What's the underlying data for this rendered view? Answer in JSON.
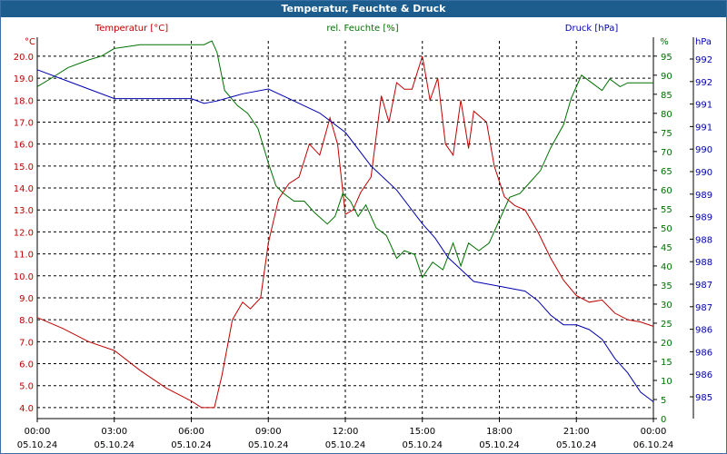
{
  "window": {
    "title": "Temperatur, Feuchte & Druck"
  },
  "legend": {
    "temperature": "Temperatur [°C]",
    "humidity": "rel. Feuchte [%]",
    "pressure": "Druck [hPa]"
  },
  "axes": {
    "left_unit": "°C",
    "right1_unit": "%",
    "right2_unit": "hPa",
    "left_ticks": [
      "4.0",
      "5.0",
      "6.0",
      "7.0",
      "8.0",
      "9.0",
      "10.0",
      "11.0",
      "12.0",
      "13.0",
      "14.0",
      "15.0",
      "16.0",
      "17.0",
      "18.0",
      "19.0",
      "20.0"
    ],
    "right1_ticks": [
      "0",
      "5",
      "10",
      "15",
      "20",
      "25",
      "30",
      "35",
      "40",
      "45",
      "50",
      "55",
      "60",
      "65",
      "70",
      "75",
      "80",
      "85",
      "90",
      "95"
    ],
    "right2_ticks": [
      "985",
      "986",
      "986",
      "986",
      "987",
      "987",
      "988",
      "988",
      "989",
      "989",
      "990",
      "990",
      "991",
      "991",
      "992",
      "992"
    ],
    "x_time_ticks": [
      "00:00",
      "03:00",
      "06:00",
      "09:00",
      "12:00",
      "15:00",
      "18:00",
      "21:00",
      "00:00"
    ],
    "x_date_ticks": [
      "05.10.24",
      "05.10.24",
      "05.10.24",
      "05.10.24",
      "05.10.24",
      "05.10.24",
      "05.10.24",
      "05.10.24",
      "06.10.24"
    ]
  },
  "colors": {
    "temperature": "#c00000",
    "humidity": "#007000",
    "pressure": "#0000b0",
    "title_bar": "#1c5d8e",
    "grid": "#000000"
  },
  "chart_data": {
    "type": "line",
    "x_unit": "hours since 05.10.24 00:00",
    "xlim": [
      0,
      24
    ],
    "grid": true,
    "series": [
      {
        "name": "Temperatur [°C]",
        "axis": "left",
        "ylim": [
          3.5,
          20.7
        ],
        "points": [
          [
            0,
            8.1
          ],
          [
            1,
            7.6
          ],
          [
            2,
            7.0
          ],
          [
            3,
            6.6
          ],
          [
            4,
            5.7
          ],
          [
            5,
            4.9
          ],
          [
            6,
            4.3
          ],
          [
            6.4,
            4.0
          ],
          [
            6.9,
            4.0
          ],
          [
            7.2,
            5.5
          ],
          [
            7.6,
            8.0
          ],
          [
            8.0,
            8.8
          ],
          [
            8.3,
            8.5
          ],
          [
            8.7,
            9.0
          ],
          [
            9.0,
            11.5
          ],
          [
            9.4,
            13.5
          ],
          [
            9.8,
            14.2
          ],
          [
            10.2,
            14.5
          ],
          [
            10.6,
            16.0
          ],
          [
            11.0,
            15.5
          ],
          [
            11.4,
            17.2
          ],
          [
            11.7,
            16.0
          ],
          [
            12.0,
            12.8
          ],
          [
            12.3,
            13.0
          ],
          [
            12.6,
            13.8
          ],
          [
            13.0,
            14.5
          ],
          [
            13.4,
            18.2
          ],
          [
            13.7,
            17.0
          ],
          [
            14.0,
            18.8
          ],
          [
            14.3,
            18.5
          ],
          [
            14.6,
            18.5
          ],
          [
            15.0,
            20.0
          ],
          [
            15.3,
            18.0
          ],
          [
            15.6,
            19.0
          ],
          [
            15.9,
            16.0
          ],
          [
            16.2,
            15.5
          ],
          [
            16.5,
            18.0
          ],
          [
            16.8,
            15.8
          ],
          [
            17.0,
            17.5
          ],
          [
            17.5,
            17.0
          ],
          [
            17.8,
            15.0
          ],
          [
            18.2,
            13.6
          ],
          [
            18.6,
            13.2
          ],
          [
            19.0,
            13.0
          ],
          [
            19.5,
            12.0
          ],
          [
            20.0,
            10.8
          ],
          [
            20.5,
            9.8
          ],
          [
            21.0,
            9.1
          ],
          [
            21.5,
            8.8
          ],
          [
            22.0,
            8.9
          ],
          [
            22.5,
            8.3
          ],
          [
            23.0,
            8.0
          ],
          [
            23.5,
            7.9
          ],
          [
            24.0,
            7.7
          ]
        ]
      },
      {
        "name": "rel. Feuchte [%]",
        "axis": "right1",
        "ylim": [
          0,
          99
        ],
        "points": [
          [
            0,
            87
          ],
          [
            0.5,
            89
          ],
          [
            1.2,
            92
          ],
          [
            2.0,
            94
          ],
          [
            2.5,
            95
          ],
          [
            3.0,
            97
          ],
          [
            4.0,
            98
          ],
          [
            5.0,
            98
          ],
          [
            6.0,
            98
          ],
          [
            6.5,
            98
          ],
          [
            6.8,
            99
          ],
          [
            7.0,
            96
          ],
          [
            7.3,
            86
          ],
          [
            7.8,
            82
          ],
          [
            8.2,
            80
          ],
          [
            8.6,
            76
          ],
          [
            9.0,
            67
          ],
          [
            9.3,
            61
          ],
          [
            9.6,
            59
          ],
          [
            10.0,
            57
          ],
          [
            10.4,
            57
          ],
          [
            10.8,
            54
          ],
          [
            11.3,
            51
          ],
          [
            11.6,
            53
          ],
          [
            11.9,
            59
          ],
          [
            12.2,
            57
          ],
          [
            12.5,
            53
          ],
          [
            12.8,
            56
          ],
          [
            13.2,
            50
          ],
          [
            13.6,
            48
          ],
          [
            14.0,
            42
          ],
          [
            14.3,
            44
          ],
          [
            14.7,
            43
          ],
          [
            15.0,
            37
          ],
          [
            15.4,
            41
          ],
          [
            15.8,
            39
          ],
          [
            16.2,
            46
          ],
          [
            16.5,
            40
          ],
          [
            16.8,
            46
          ],
          [
            17.2,
            44
          ],
          [
            17.6,
            46
          ],
          [
            18.0,
            52
          ],
          [
            18.4,
            58
          ],
          [
            18.8,
            59
          ],
          [
            19.2,
            62
          ],
          [
            19.6,
            65
          ],
          [
            20.0,
            71
          ],
          [
            20.5,
            77
          ],
          [
            20.8,
            84
          ],
          [
            21.2,
            90
          ],
          [
            21.6,
            88
          ],
          [
            22.0,
            86
          ],
          [
            22.3,
            89
          ],
          [
            22.7,
            87
          ],
          [
            23.0,
            88
          ],
          [
            23.5,
            88
          ],
          [
            24.0,
            88
          ]
        ]
      },
      {
        "name": "Druck [hPa]",
        "axis": "right2",
        "ylim": [
          984.75,
          992.6
        ],
        "points": [
          [
            0,
            992.0
          ],
          [
            1.0,
            991.8
          ],
          [
            2.0,
            991.6
          ],
          [
            3.0,
            991.4
          ],
          [
            4.0,
            991.4
          ],
          [
            5.0,
            991.4
          ],
          [
            6.0,
            991.4
          ],
          [
            6.5,
            991.3
          ],
          [
            7.0,
            991.35
          ],
          [
            8.0,
            991.5
          ],
          [
            9.0,
            991.6
          ],
          [
            10.0,
            991.35
          ],
          [
            11.0,
            991.1
          ],
          [
            12.0,
            990.7
          ],
          [
            13.0,
            990.0
          ],
          [
            14.0,
            989.5
          ],
          [
            15.0,
            988.8
          ],
          [
            15.5,
            988.5
          ],
          [
            16.0,
            988.1
          ],
          [
            17.0,
            987.6
          ],
          [
            18.0,
            987.5
          ],
          [
            19.0,
            987.4
          ],
          [
            19.5,
            987.2
          ],
          [
            20.0,
            986.9
          ],
          [
            20.5,
            986.7
          ],
          [
            21.0,
            986.7
          ],
          [
            21.5,
            986.6
          ],
          [
            22.0,
            986.4
          ],
          [
            22.5,
            986.0
          ],
          [
            23.0,
            985.7
          ],
          [
            23.5,
            985.3
          ],
          [
            24.0,
            985.1
          ]
        ]
      }
    ]
  }
}
